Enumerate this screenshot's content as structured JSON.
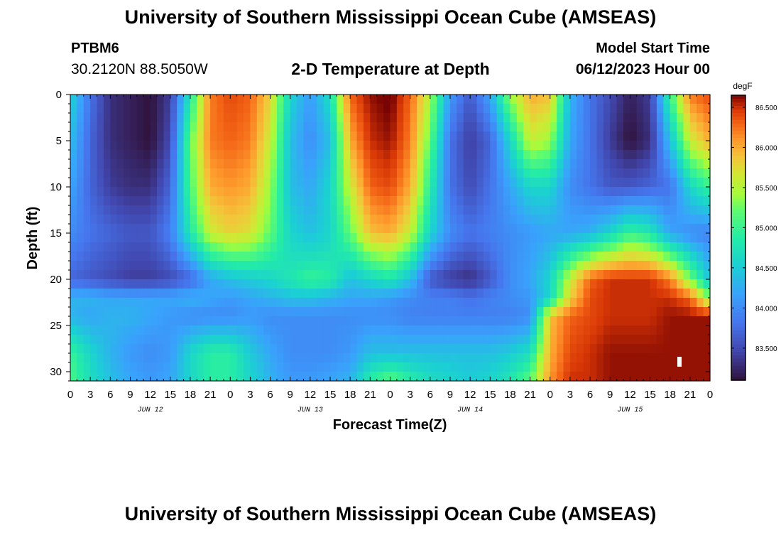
{
  "header": {
    "title": "University of Southern Mississippi Ocean Cube (AMSEAS)",
    "station_id": "PTBM6",
    "station_coords": "30.2120N  88.5050W",
    "chart_title": "2-D Temperature at Depth",
    "model_start_label": "Model Start Time",
    "model_start_value": "06/12/2023 Hour 00"
  },
  "footer": {
    "title": "University of Southern Mississippi Ocean Cube (AMSEAS)"
  },
  "chart_data": {
    "type": "heatmap",
    "title": "2-D Temperature at Depth",
    "xlabel": "Forecast Time(Z)",
    "ylabel": "Depth (ft)",
    "x_tick_labels": [
      "0",
      "3",
      "6",
      "9",
      "12",
      "15",
      "18",
      "21",
      "0",
      "3",
      "6",
      "9",
      "12",
      "15",
      "18",
      "21",
      "0",
      "3",
      "6",
      "9",
      "12",
      "15",
      "18",
      "21",
      "0",
      "3",
      "6",
      "9",
      "12",
      "15",
      "18",
      "21",
      "0"
    ],
    "x_date_labels": [
      {
        "label": "JUN 12",
        "hour": 12
      },
      {
        "label": "JUN 13",
        "hour": 36
      },
      {
        "label": "JUN 14",
        "hour": 60
      },
      {
        "label": "JUN 15",
        "hour": 84
      }
    ],
    "xlim_hours": [
      0,
      96
    ],
    "y_ticks": [
      0,
      5,
      10,
      15,
      20,
      25,
      30
    ],
    "ylim_ft": [
      0,
      31
    ],
    "colorbar": {
      "unit": "degF",
      "tick_labels": [
        "86.500",
        "86.000",
        "85.500",
        "85.000",
        "84.500",
        "84.000",
        "83.500"
      ],
      "tick_values": [
        86.5,
        86.0,
        85.5,
        85.0,
        84.5,
        84.0,
        83.5
      ],
      "range": [
        83.1,
        86.65
      ]
    },
    "x_hours": [
      0,
      3,
      6,
      9,
      12,
      15,
      18,
      21,
      24,
      27,
      30,
      33,
      36,
      39,
      42,
      45,
      48,
      51,
      54,
      57,
      60,
      63,
      66,
      69,
      72,
      75,
      78,
      81,
      84,
      87,
      90,
      93,
      96
    ],
    "depths_ft": [
      0,
      5,
      10,
      15,
      20,
      22,
      24,
      28,
      31
    ],
    "temps_degF": [
      [
        84.6,
        83.8,
        83.3,
        83.2,
        83.1,
        83.4,
        84.8,
        86.2,
        86.4,
        86.3,
        85.8,
        84.6,
        84.1,
        84.7,
        86.3,
        86.6,
        86.7,
        86.3,
        85.5,
        84.1,
        83.6,
        84.2,
        85.4,
        86.0,
        85.9,
        84.3,
        83.8,
        83.5,
        83.2,
        83.4,
        85.0,
        86.2,
        86.4
      ],
      [
        84.4,
        83.7,
        83.3,
        83.2,
        83.1,
        83.5,
        85.2,
        86.2,
        86.3,
        86.2,
        85.6,
        84.4,
        84.0,
        84.4,
        86.0,
        86.5,
        86.6,
        86.2,
        85.2,
        83.8,
        83.4,
        83.7,
        84.6,
        85.6,
        85.4,
        84.2,
        83.8,
        83.4,
        83.1,
        83.3,
        84.4,
        85.6,
        86.0
      ],
      [
        84.2,
        83.7,
        83.4,
        83.3,
        83.3,
        83.7,
        85.1,
        86.0,
        86.1,
        86.0,
        85.4,
        84.4,
        84.2,
        84.6,
        85.6,
        86.3,
        86.4,
        86.0,
        84.9,
        83.8,
        83.5,
        83.8,
        84.2,
        84.6,
        84.6,
        84.0,
        83.8,
        83.6,
        83.6,
        83.7,
        83.8,
        84.6,
        85.0
      ],
      [
        84.0,
        83.8,
        83.7,
        83.6,
        83.6,
        83.9,
        84.8,
        85.6,
        85.8,
        85.7,
        85.2,
        84.6,
        84.4,
        84.6,
        85.2,
        85.9,
        86.0,
        85.6,
        84.6,
        84.0,
        83.8,
        83.9,
        84.0,
        84.1,
        84.2,
        84.2,
        84.3,
        84.6,
        85.0,
        84.8,
        84.2,
        84.0,
        83.9
      ],
      [
        83.7,
        83.6,
        83.5,
        83.4,
        83.4,
        83.5,
        83.7,
        84.2,
        84.4,
        84.5,
        84.6,
        84.8,
        85.0,
        84.9,
        84.4,
        84.6,
        84.8,
        84.4,
        83.6,
        83.4,
        83.3,
        83.6,
        84.0,
        84.2,
        84.6,
        85.6,
        86.3,
        86.5,
        86.5,
        86.5,
        86.2,
        85.3,
        84.4
      ],
      [
        84.3,
        84.3,
        84.2,
        84.2,
        84.2,
        84.2,
        84.3,
        84.2,
        84.1,
        84.2,
        84.3,
        84.4,
        84.4,
        84.3,
        84.2,
        84.2,
        84.1,
        84.0,
        83.9,
        83.9,
        83.8,
        83.9,
        84.0,
        84.1,
        84.6,
        85.8,
        86.4,
        86.5,
        86.5,
        86.5,
        86.5,
        86.3,
        85.3
      ],
      [
        84.3,
        84.2,
        84.3,
        84.3,
        84.2,
        84.1,
        84.0,
        84.0,
        84.0,
        84.1,
        84.0,
        84.0,
        84.0,
        84.0,
        84.0,
        84.0,
        84.0,
        83.9,
        83.9,
        83.9,
        83.9,
        83.9,
        83.9,
        84.0,
        85.9,
        86.3,
        86.4,
        86.5,
        86.5,
        86.5,
        86.6,
        86.6,
        86.6
      ],
      [
        85.0,
        84.6,
        84.3,
        84.1,
        84.0,
        84.1,
        84.6,
        84.9,
        84.9,
        84.5,
        84.2,
        84.0,
        84.0,
        84.0,
        84.1,
        84.4,
        84.4,
        84.4,
        84.4,
        84.4,
        84.4,
        84.4,
        84.5,
        84.7,
        86.0,
        86.4,
        86.5,
        86.6,
        86.6,
        86.6,
        86.6,
        86.6,
        86.6
      ],
      [
        85.1,
        84.7,
        84.4,
        84.2,
        84.1,
        84.2,
        84.6,
        84.9,
        84.9,
        84.6,
        84.3,
        84.1,
        84.1,
        84.2,
        84.3,
        84.9,
        85.2,
        84.9,
        84.7,
        84.6,
        84.5,
        84.6,
        84.8,
        85.2,
        86.1,
        86.5,
        86.5,
        86.6,
        86.6,
        86.6,
        86.6,
        86.6,
        86.6
      ]
    ]
  }
}
